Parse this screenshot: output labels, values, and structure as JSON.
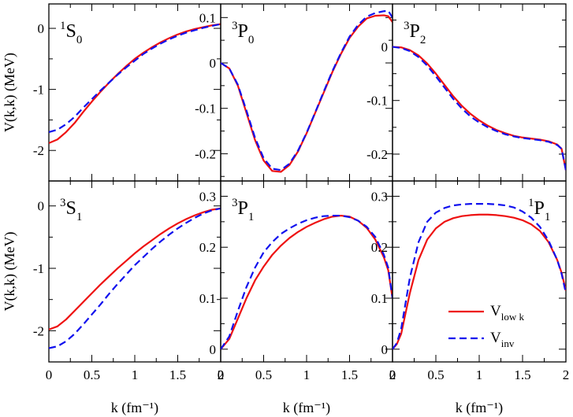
{
  "chart_data": {
    "type": "line",
    "layout": "2x3 panel grid, shared x-axis per column, shared y-axis per row",
    "x_tick_labels": [
      "0",
      "0.5",
      "1",
      "1.5",
      "2"
    ],
    "colors": {
      "vlowk": "#ee1111",
      "vinv": "#1111ee"
    },
    "legend": {
      "placement": "bottom-right panel",
      "entries": [
        {
          "key": "vlowk",
          "main": "V",
          "sub": "low k",
          "style": "solid"
        },
        {
          "key": "vinv",
          "main": "V",
          "sub": "inv",
          "style": "dashed"
        }
      ]
    },
    "panels": [
      {
        "id": "1S0",
        "sup": "1",
        "main": "S",
        "sub": "0",
        "label_pos": "top-left",
        "xlim": [
          0,
          2
        ],
        "ylim": [
          -2.5,
          0.4
        ],
        "yticks": [
          0,
          -1,
          -2
        ],
        "ytick_labels": [
          "0",
          "-1",
          "-2"
        ],
        "ylabel": "V(k,k) (MeV)",
        "xlabel": "",
        "x": [
          0,
          0.1,
          0.2,
          0.3,
          0.4,
          0.5,
          0.6,
          0.7,
          0.8,
          0.9,
          1.0,
          1.1,
          1.2,
          1.3,
          1.4,
          1.5,
          1.6,
          1.7,
          1.8,
          1.9,
          2.0
        ],
        "series": [
          {
            "name": "V_low k",
            "key": "vlowk",
            "values": [
              -1.88,
              -1.82,
              -1.7,
              -1.55,
              -1.37,
              -1.2,
              -1.04,
              -0.89,
              -0.75,
              -0.62,
              -0.5,
              -0.4,
              -0.31,
              -0.23,
              -0.16,
              -0.1,
              -0.05,
              -0.01,
              0.02,
              0.05,
              0.07
            ]
          },
          {
            "name": "V_inv",
            "key": "vinv",
            "values": [
              -1.7,
              -1.66,
              -1.57,
              -1.45,
              -1.3,
              -1.16,
              -1.02,
              -0.89,
              -0.76,
              -0.64,
              -0.53,
              -0.42,
              -0.33,
              -0.25,
              -0.18,
              -0.12,
              -0.07,
              -0.03,
              0.01,
              0.04,
              0.07
            ]
          }
        ]
      },
      {
        "id": "3P0",
        "sup": "3",
        "main": "P",
        "sub": "0",
        "label_pos": "top-left",
        "xlim": [
          0,
          2
        ],
        "ylim": [
          -0.26,
          0.13
        ],
        "yticks": [
          0.1,
          0,
          -0.1,
          -0.2
        ],
        "ytick_labels": [
          "0.1",
          "0",
          "-0.1",
          "-0.2"
        ],
        "ylabel": "",
        "xlabel": "",
        "x": [
          0,
          0.1,
          0.2,
          0.3,
          0.4,
          0.5,
          0.6,
          0.7,
          0.8,
          0.9,
          1.0,
          1.1,
          1.2,
          1.3,
          1.4,
          1.5,
          1.6,
          1.7,
          1.8,
          1.9,
          1.95,
          2.0
        ],
        "series": [
          {
            "name": "V_low k",
            "key": "vlowk",
            "values": [
              0,
              -0.012,
              -0.05,
              -0.11,
              -0.17,
              -0.215,
              -0.238,
              -0.24,
              -0.225,
              -0.195,
              -0.155,
              -0.11,
              -0.065,
              -0.02,
              0.02,
              0.055,
              0.08,
              0.098,
              0.104,
              0.105,
              0.103,
              0.09
            ]
          },
          {
            "name": "V_inv",
            "key": "vinv",
            "values": [
              0,
              -0.012,
              -0.048,
              -0.105,
              -0.165,
              -0.21,
              -0.233,
              -0.236,
              -0.222,
              -0.193,
              -0.154,
              -0.109,
              -0.063,
              -0.018,
              0.022,
              0.058,
              0.084,
              0.102,
              0.11,
              0.114,
              0.115,
              0.1
            ]
          }
        ]
      },
      {
        "id": "3P2",
        "sup": "3",
        "main": "P",
        "sub": "2",
        "label_pos": "top-left",
        "xlim": [
          0,
          2
        ],
        "ylim": [
          -0.25,
          0.08
        ],
        "yticks": [
          0,
          -0.1,
          -0.2
        ],
        "ytick_labels": [
          "0",
          "-0.1",
          "-0.2"
        ],
        "ylabel": "",
        "xlabel": "",
        "x": [
          0,
          0.1,
          0.2,
          0.3,
          0.4,
          0.5,
          0.6,
          0.7,
          0.8,
          0.9,
          1.0,
          1.1,
          1.2,
          1.3,
          1.4,
          1.5,
          1.6,
          1.7,
          1.8,
          1.9,
          1.95,
          2.0
        ],
        "series": [
          {
            "name": "V_low k",
            "key": "vlowk",
            "values": [
              0,
              -0.001,
              -0.006,
              -0.016,
              -0.031,
              -0.05,
              -0.071,
              -0.092,
              -0.11,
              -0.125,
              -0.137,
              -0.147,
              -0.155,
              -0.161,
              -0.166,
              -0.169,
              -0.171,
              -0.173,
              -0.176,
              -0.182,
              -0.19,
              -0.23
            ]
          },
          {
            "name": "V_inv",
            "key": "vinv",
            "values": [
              0,
              -0.002,
              -0.008,
              -0.019,
              -0.035,
              -0.055,
              -0.076,
              -0.097,
              -0.115,
              -0.13,
              -0.141,
              -0.15,
              -0.157,
              -0.163,
              -0.167,
              -0.17,
              -0.172,
              -0.174,
              -0.177,
              -0.183,
              -0.19,
              -0.23
            ]
          }
        ]
      },
      {
        "id": "3S1",
        "sup": "3",
        "main": "S",
        "sub": "1",
        "label_pos": "top-left",
        "xlim": [
          0,
          2
        ],
        "ylim": [
          -2.5,
          0.4
        ],
        "yticks": [
          0,
          -1,
          -2
        ],
        "ytick_labels": [
          "0",
          "-1",
          "-2"
        ],
        "ylabel": "V(k,k) (MeV)",
        "xlabel": "k (fm⁻¹)",
        "x": [
          0,
          0.1,
          0.2,
          0.3,
          0.4,
          0.5,
          0.6,
          0.7,
          0.8,
          0.9,
          1.0,
          1.1,
          1.2,
          1.3,
          1.4,
          1.5,
          1.6,
          1.7,
          1.8,
          1.9,
          2.0
        ],
        "series": [
          {
            "name": "V_low k",
            "key": "vlowk",
            "values": [
              -1.98,
              -1.93,
              -1.82,
              -1.68,
              -1.54,
              -1.4,
              -1.26,
              -1.13,
              -1.0,
              -0.88,
              -0.76,
              -0.65,
              -0.55,
              -0.45,
              -0.36,
              -0.28,
              -0.21,
              -0.15,
              -0.1,
              -0.06,
              -0.04
            ]
          },
          {
            "name": "V_inv",
            "key": "vinv",
            "values": [
              -2.28,
              -2.25,
              -2.17,
              -2.05,
              -1.9,
              -1.74,
              -1.58,
              -1.41,
              -1.25,
              -1.1,
              -0.95,
              -0.82,
              -0.69,
              -0.57,
              -0.46,
              -0.36,
              -0.27,
              -0.19,
              -0.12,
              -0.07,
              -0.04
            ]
          }
        ]
      },
      {
        "id": "3P1",
        "sup": "3",
        "main": "P",
        "sub": "1",
        "label_pos": "top-left",
        "xlim": [
          0,
          2
        ],
        "ylim": [
          -0.025,
          0.33
        ],
        "yticks": [
          0,
          0.1,
          0.2,
          0.3
        ],
        "ytick_labels": [
          "0",
          "0.1",
          "0.2",
          "0.3"
        ],
        "ylabel": "",
        "xlabel": "k (fm⁻¹)",
        "x": [
          0,
          0.1,
          0.2,
          0.3,
          0.4,
          0.5,
          0.6,
          0.7,
          0.8,
          0.9,
          1.0,
          1.1,
          1.2,
          1.3,
          1.4,
          1.5,
          1.6,
          1.7,
          1.8,
          1.9,
          1.95,
          2.0
        ],
        "series": [
          {
            "name": "V_low k",
            "key": "vlowk",
            "values": [
              0,
              0.02,
              0.06,
              0.1,
              0.135,
              0.162,
              0.185,
              0.203,
              0.218,
              0.23,
              0.24,
              0.248,
              0.255,
              0.26,
              0.262,
              0.26,
              0.252,
              0.238,
              0.215,
              0.18,
              0.155,
              0.1
            ]
          },
          {
            "name": "V_inv",
            "key": "vinv",
            "values": [
              0,
              0.025,
              0.075,
              0.122,
              0.16,
              0.19,
              0.21,
              0.226,
              0.237,
              0.246,
              0.253,
              0.258,
              0.261,
              0.262,
              0.262,
              0.259,
              0.252,
              0.24,
              0.22,
              0.185,
              0.16,
              0.1
            ]
          }
        ]
      },
      {
        "id": "1P1",
        "sup": "1",
        "main": "P",
        "sub": "1",
        "label_pos": "top-right",
        "xlim": [
          0,
          2
        ],
        "ylim": [
          -0.025,
          0.33
        ],
        "yticks": [
          0,
          0.1,
          0.2,
          0.3
        ],
        "ytick_labels": [
          "0",
          "0.1",
          "0.2",
          "0.3"
        ],
        "ylabel": "",
        "xlabel": "k (fm⁻¹)",
        "x": [
          0,
          0.05,
          0.1,
          0.15,
          0.2,
          0.3,
          0.4,
          0.5,
          0.6,
          0.7,
          0.8,
          0.9,
          1.0,
          1.1,
          1.2,
          1.3,
          1.4,
          1.5,
          1.6,
          1.7,
          1.8,
          1.9,
          1.95,
          2.0
        ],
        "series": [
          {
            "name": "V_low k",
            "key": "vlowk",
            "values": [
              0,
              0.01,
              0.03,
              0.07,
              0.11,
              0.175,
              0.215,
              0.237,
              0.25,
              0.257,
              0.261,
              0.263,
              0.264,
              0.264,
              0.263,
              0.261,
              0.258,
              0.253,
              0.245,
              0.232,
              0.21,
              0.175,
              0.15,
              0.115
            ]
          },
          {
            "name": "V_inv",
            "key": "vinv",
            "values": [
              0,
              0.012,
              0.04,
              0.09,
              0.14,
              0.21,
              0.25,
              0.268,
              0.277,
              0.282,
              0.284,
              0.285,
              0.285,
              0.285,
              0.284,
              0.282,
              0.278,
              0.27,
              0.258,
              0.24,
              0.213,
              0.175,
              0.148,
              0.11
            ]
          }
        ]
      }
    ]
  }
}
